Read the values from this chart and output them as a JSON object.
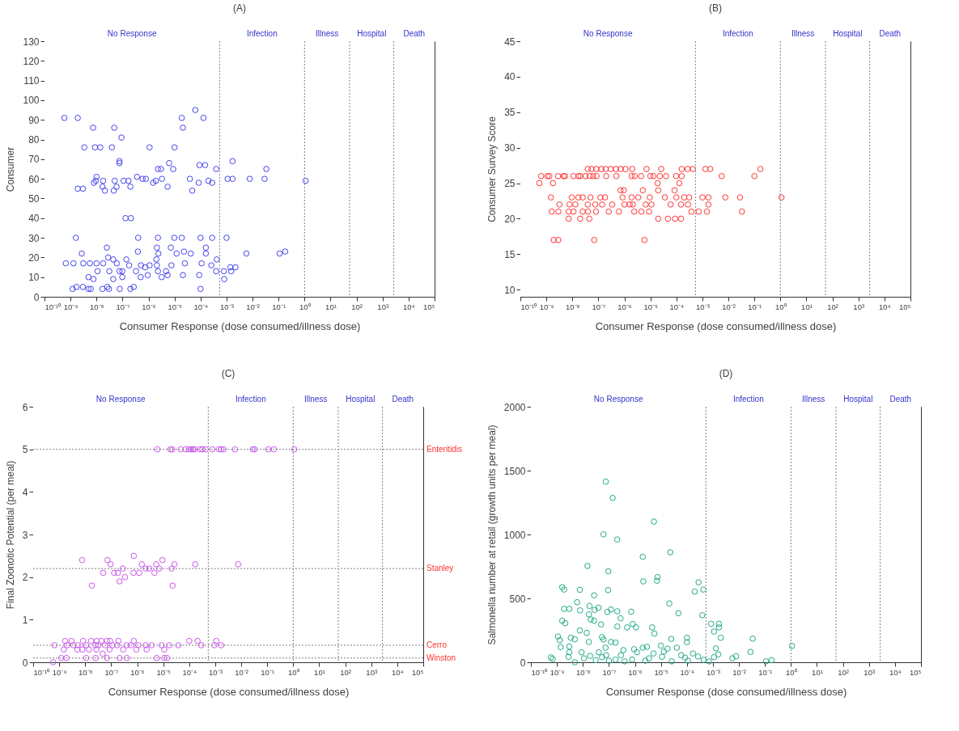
{
  "chart_data": [
    {
      "type": "scatter",
      "title": "(A)",
      "xlabel": "Consumer Response (dose consumed/illness dose)",
      "ylabel": "Consumer",
      "color": "#4444ee",
      "marker": "circle",
      "log": "x",
      "xlim": [
        1e-10,
        100000.0
      ],
      "xticks": [
        {
          "value": 1e-10,
          "label": "10⁻¹⁰"
        },
        {
          "value": 1e-09,
          "label": "10⁻⁹"
        },
        {
          "value": 1e-08,
          "label": "10⁻⁸"
        },
        {
          "value": 1e-07,
          "label": "10⁻⁷"
        },
        {
          "value": 1e-06,
          "label": "10⁻⁶"
        },
        {
          "value": 1e-05,
          "label": "10⁻⁵"
        },
        {
          "value": 0.0001,
          "label": "10⁻⁴"
        },
        {
          "value": 0.001,
          "label": "10⁻³"
        },
        {
          "value": 0.01,
          "label": "10⁻²"
        },
        {
          "value": 0.1,
          "label": "10⁻¹"
        },
        {
          "value": 1,
          "label": "10⁰"
        },
        {
          "value": 10,
          "label": "10¹"
        },
        {
          "value": 100,
          "label": "10²"
        },
        {
          "value": 1000,
          "label": "10³"
        },
        {
          "value": 10000,
          "label": "10⁴"
        },
        {
          "value": 100000,
          "label": "10⁵"
        }
      ],
      "ylim": [
        0,
        130
      ],
      "yticks": [
        0,
        10,
        20,
        30,
        40,
        50,
        60,
        70,
        80,
        90,
        100,
        110,
        120,
        130
      ],
      "bands": [
        {
          "axis": "x",
          "from": 1e-10,
          "to": 0.00054,
          "label": "No Response",
          "color": "#ffffff"
        },
        {
          "axis": "x",
          "from": 0.00054,
          "to": 1,
          "label": "Infection",
          "color": "#ffffff"
        },
        {
          "axis": "x",
          "from": 1,
          "to": 54,
          "label": "Illness",
          "color": "#ffffff"
        },
        {
          "axis": "x",
          "from": 54,
          "to": 2700,
          "label": "Hospital",
          "color": "#ffffff"
        },
        {
          "axis": "x",
          "from": 2700,
          "to": 100000.0,
          "label": "Death",
          "color": "#ffffff"
        }
      ],
      "ref_lines": [
        {
          "axis": "x",
          "value": 0.00054,
          "label": null,
          "color": "#808080",
          "line_style": "dotted"
        },
        {
          "axis": "x",
          "value": 1,
          "label": null,
          "color": "#808080",
          "line_style": "dotted"
        },
        {
          "axis": "x",
          "value": 54,
          "label": null,
          "color": "#808080",
          "line_style": "dotted"
        },
        {
          "axis": "x",
          "value": 2700,
          "label": null,
          "color": "#808080",
          "line_style": "dotted"
        }
      ],
      "x": [
        5.8e-10,
        1.9e-09,
        7.4e-09,
        4.8e-08,
        9.1e-08,
        3.4e-09,
        8.7e-09,
        1.4e-08,
        3.9e-08,
        1.1e-06,
        1e-05,
        7.6e-08,
        7.6e-08,
        1.9e-05,
        2.1e-05,
        6.3e-05,
        0.00013,
        6.2e-06,
        8.9e-06,
        2.3e-06,
        3e-06,
        9.1e-05,
        0.00015,
        0.0004,
        0.0017,
        0.034,
        1.9e-09,
        3e-09,
        7.9e-09,
        1e-08,
        9.3e-09,
        1.8e-08,
        1.7e-08,
        2.1e-08,
        4.6e-08,
        5e-08,
        5.9e-08,
        1.1e-07,
        1.7e-07,
        2e-07,
        3.6e-07,
        5.9e-07,
        7.9e-07,
        1.5e-06,
        1.9e-06,
        3.3e-06,
        5.4e-06,
        3.9e-05,
        4.8e-05,
        8.5e-05,
        0.0002,
        0.00028,
        0.0011,
        0.0017,
        0.0078,
        0.029,
        1.1,
        1.3e-07,
        2.1e-07,
        1.6e-09,
        4e-07,
        2.3e-06,
        9.8e-06,
        1.9e-05,
        0.0001,
        0.00028,
        0.001,
        2.5e-08,
        2.1e-06,
        7.2e-06,
        0.00016,
        2.7e-09,
        3.9e-07,
        2.4e-06,
        1.2e-05,
        2.3e-05,
        4.2e-05,
        0.00016,
        0.0058,
        0.11,
        0.18,
        6.6e-10,
        1.3e-09,
        3.1e-09,
        5.6e-09,
        1e-08,
        1.8e-08,
        2.8e-08,
        4.4e-08,
        6e-08,
        1.4e-07,
        1.8e-07,
        5.1e-07,
        1.1e-06,
        2e-06,
        2.1e-06,
        7.6e-06,
        2.5e-05,
        0.00011,
        0.00026,
        0.00042,
        0.0014,
        0.0022,
        1.1e-08,
        3.1e-08,
        7.6e-08,
        9.8e-08,
        3.3e-07,
        7.4e-07,
        2.3e-06,
        4.7e-06,
        0.0004,
        0.00079,
        0.0015,
        4.9e-09,
        7.6e-09,
        4.4e-08,
        9.8e-08,
        5e-07,
        9.3e-07,
        3.2e-06,
        5.4e-06,
        2.1e-05,
        8.9e-05,
        0.00081,
        1.2e-09,
        1.7e-09,
        3e-09,
        4.9e-09,
        6e-09,
        1.7e-08,
        2.6e-08,
        3e-08,
        7.8e-08,
        2e-07,
        2.7e-07,
        0.0001
      ],
      "values": [
        91,
        91,
        86,
        86,
        81,
        76,
        76,
        76,
        76,
        76,
        76,
        69,
        68,
        91,
        86,
        95,
        91,
        68,
        65,
        65,
        65,
        67,
        67,
        65,
        69,
        65,
        55,
        55,
        58,
        61,
        59,
        59,
        56,
        54,
        54,
        59,
        56,
        59,
        59,
        56,
        61,
        60,
        60,
        58,
        59,
        60,
        56,
        60,
        54,
        58,
        59,
        58,
        60,
        60,
        60,
        60,
        59,
        40,
        40,
        30,
        30,
        30,
        30,
        30,
        30,
        30,
        30,
        25,
        25,
        25,
        25,
        22,
        23,
        22,
        22,
        23,
        22,
        22,
        22,
        22,
        23,
        17,
        17,
        17,
        17,
        17,
        17,
        20,
        19,
        17,
        19,
        16,
        16,
        16,
        19,
        16,
        16,
        17,
        17,
        16,
        19,
        15,
        15,
        13,
        13,
        13,
        13,
        13,
        15,
        13,
        13,
        13,
        13,
        13,
        10,
        9,
        9,
        10,
        10,
        11,
        10,
        11,
        11,
        11,
        9,
        4,
        5,
        5,
        4,
        4,
        4,
        5,
        4,
        4,
        4,
        5,
        4
      ]
    },
    {
      "type": "scatter",
      "title": "(B)",
      "xlabel": "Consumer Response (dose consumed/illness dose)",
      "ylabel": "Consumer Survey Score",
      "color": "#ff3333",
      "marker": "circle",
      "log": "x",
      "xlim": [
        1e-10,
        100000.0
      ],
      "xticks": [
        {
          "value": 1e-10,
          "label": "10⁻¹⁰"
        },
        {
          "value": 1e-09,
          "label": "10⁻⁹"
        },
        {
          "value": 1e-08,
          "label": "10⁻⁸"
        },
        {
          "value": 1e-07,
          "label": "10⁻⁷"
        },
        {
          "value": 1e-06,
          "label": "10⁻⁶"
        },
        {
          "value": 1e-05,
          "label": "10⁻⁵"
        },
        {
          "value": 0.0001,
          "label": "10⁻⁴"
        },
        {
          "value": 0.001,
          "label": "10⁻³"
        },
        {
          "value": 0.01,
          "label": "10⁻²"
        },
        {
          "value": 0.1,
          "label": "10⁻¹"
        },
        {
          "value": 1,
          "label": "10⁰"
        },
        {
          "value": 10,
          "label": "10¹"
        },
        {
          "value": 100,
          "label": "10²"
        },
        {
          "value": 1000,
          "label": "10³"
        },
        {
          "value": 10000,
          "label": "10⁴"
        },
        {
          "value": 100000,
          "label": "10⁵"
        }
      ],
      "ylim": [
        9,
        45
      ],
      "yticks": [
        10,
        15,
        20,
        25,
        30,
        35,
        40,
        45
      ],
      "bands": [
        {
          "axis": "x",
          "from": 1e-10,
          "to": 0.00054,
          "label": "No Response",
          "color": "#ffffff"
        },
        {
          "axis": "x",
          "from": 0.00054,
          "to": 1,
          "label": "Infection",
          "color": "#ffffff"
        },
        {
          "axis": "x",
          "from": 1,
          "to": 54,
          "label": "Illness",
          "color": "#ffffff"
        },
        {
          "axis": "x",
          "from": 54,
          "to": 2700,
          "label": "Hospital",
          "color": "#ffffff"
        },
        {
          "axis": "x",
          "from": 2700,
          "to": 100000.0,
          "label": "Death",
          "color": "#ffffff"
        }
      ],
      "ref_lines": [
        {
          "axis": "x",
          "value": 0.00054,
          "label": null,
          "color": "#808080",
          "line_style": "dotted"
        },
        {
          "axis": "x",
          "value": 1,
          "label": null,
          "color": "#808080",
          "line_style": "dotted"
        },
        {
          "axis": "x",
          "value": 54,
          "label": null,
          "color": "#808080",
          "line_style": "dotted"
        },
        {
          "axis": "x",
          "value": 2700,
          "label": null,
          "color": "#808080",
          "line_style": "dotted"
        }
      ],
      "x": [
        3.9e-08,
        5.4e-08,
        8.3e-08,
        1.3e-07,
        1.9e-07,
        3e-07,
        4.7e-07,
        7.2e-07,
        1.1e-06,
        2e-06,
        7.1e-06,
        2.6e-05,
        0.00016,
        0.00027,
        0.00043,
        0.0013,
        0.002,
        0.17,
        6.3e-10,
        1.1e-09,
        1.3e-09,
        2.8e-09,
        4.6e-09,
        5.2e-09,
        1.1e-08,
        1.7e-08,
        2e-08,
        3.2e-08,
        4.7e-08,
        6.3e-08,
        8.5e-08,
        2e-07,
        4.9e-07,
        1.9e-06,
        2.5e-06,
        4.4e-06,
        1e-05,
        1.3e-05,
        2.3e-05,
        4e-05,
        9.8e-05,
        0.00016,
        0.0055,
        0.1,
        5.4e-10,
        1.8e-09,
        1.9e-05,
        0.00013,
        7.1e-07,
        9.5e-07,
        5.1e-06,
        2e-05,
        8.5e-05,
        1.5e-09,
        9.5e-09,
        1.7e-08,
        2.5e-08,
        5e-08,
        1.2e-07,
        1.8e-07,
        8.5e-07,
        1.9e-06,
        3.4e-06,
        9.5e-06,
        3.6e-05,
        0.0001,
        0.0002,
        0.00031,
        0.001,
        0.0017,
        0.0076,
        0.028,
        1.1,
        3.2e-09,
        7.8e-09,
        1.3e-08,
        3.9e-08,
        7.6e-08,
        1.4e-07,
        3.4e-07,
        1e-06,
        1.6e-06,
        2.1e-06,
        6.6e-06,
        1.1e-05,
        6e-05,
        0.00015,
        0.00028,
        0.0017,
        1.6e-09,
        2.9e-09,
        7.2e-09,
        1.1e-08,
        2.5e-08,
        4e-08,
        8.1e-08,
        2.5e-07,
        6.2e-07,
        2.4e-06,
        4.5e-06,
        8.9e-06,
        0.00038,
        0.00072,
        0.0015,
        0.033,
        7.2e-09,
        2e-08,
        4.5e-08,
        2e-05,
        4.7e-05,
        8.9e-05,
        0.00015,
        1.9e-09,
        2.9e-09,
        6.9e-08,
        5.9e-06
      ],
      "values": [
        27,
        27,
        27,
        27,
        27,
        27,
        27,
        27,
        27,
        27,
        27,
        27,
        27,
        27,
        27,
        27,
        27,
        27,
        26,
        26,
        26,
        26,
        26,
        26,
        26,
        26,
        26,
        26,
        26,
        26,
        26,
        26,
        26,
        26,
        26,
        26,
        26,
        26,
        26,
        26,
        26,
        26,
        26,
        26,
        25,
        25,
        25,
        25,
        24,
        24,
        24,
        24,
        24,
        23,
        23,
        23,
        23,
        23,
        23,
        23,
        23,
        23,
        23,
        23,
        23,
        23,
        23,
        23,
        23,
        23,
        23,
        23,
        23,
        22,
        22,
        22,
        22,
        22,
        22,
        22,
        22,
        22,
        22,
        22,
        22,
        22,
        22,
        22,
        22,
        21,
        21,
        21,
        21,
        21,
        21,
        21,
        21,
        21,
        21,
        21,
        21,
        21,
        21,
        21,
        21,
        20,
        20,
        20,
        20,
        20,
        20,
        20,
        17,
        17,
        17,
        17
      ]
    },
    {
      "type": "scatter",
      "title": "(C)",
      "xlabel": "Consumer Response (dose consumed/illness dose)",
      "ylabel": "Final Zoonotic Potential (per meal)",
      "color": "#cc55ee",
      "marker": "circle",
      "log": "x",
      "xlim": [
        1e-10,
        100000.0
      ],
      "xticks": [
        {
          "value": 1e-10,
          "label": "10⁻¹⁰"
        },
        {
          "value": 1e-09,
          "label": "10⁻⁹"
        },
        {
          "value": 1e-08,
          "label": "10⁻⁸"
        },
        {
          "value": 1e-07,
          "label": "10⁻⁷"
        },
        {
          "value": 1e-06,
          "label": "10⁻⁶"
        },
        {
          "value": 1e-05,
          "label": "10⁻⁵"
        },
        {
          "value": 0.0001,
          "label": "10⁻⁴"
        },
        {
          "value": 0.001,
          "label": "10⁻³"
        },
        {
          "value": 0.01,
          "label": "10⁻²"
        },
        {
          "value": 0.1,
          "label": "10⁻¹"
        },
        {
          "value": 1,
          "label": "10⁰"
        },
        {
          "value": 10,
          "label": "10¹"
        },
        {
          "value": 100,
          "label": "10²"
        },
        {
          "value": 1000,
          "label": "10³"
        },
        {
          "value": 10000,
          "label": "10⁴"
        },
        {
          "value": 100000,
          "label": "10⁵"
        }
      ],
      "ylim": [
        0,
        6
      ],
      "yticks": [
        0,
        1,
        2,
        3,
        4,
        5,
        6
      ],
      "bands": [
        {
          "axis": "x",
          "from": 1e-10,
          "to": 0.00054,
          "label": "No Response",
          "color": "#ffffff"
        },
        {
          "axis": "x",
          "from": 0.00054,
          "to": 1,
          "label": "Infection",
          "color": "#ffffff"
        },
        {
          "axis": "x",
          "from": 1,
          "to": 54,
          "label": "Illness",
          "color": "#ffffff"
        },
        {
          "axis": "x",
          "from": 54,
          "to": 2700,
          "label": "Hospital",
          "color": "#ffffff"
        },
        {
          "axis": "x",
          "from": 2700,
          "to": 100000.0,
          "label": "Death",
          "color": "#ffffff"
        }
      ],
      "ref_lines": [
        {
          "axis": "x",
          "value": 0.00054,
          "label": null,
          "color": "#808080",
          "line_style": "dotted"
        },
        {
          "axis": "x",
          "value": 1,
          "label": null,
          "color": "#808080",
          "line_style": "dotted"
        },
        {
          "axis": "x",
          "value": 54,
          "label": null,
          "color": "#808080",
          "line_style": "dotted"
        },
        {
          "axis": "x",
          "value": 2700,
          "label": null,
          "color": "#808080",
          "line_style": "dotted"
        },
        {
          "axis": "y",
          "value": 5,
          "label": "Enteritidis",
          "color": "#808080",
          "line_style": "dotted"
        },
        {
          "axis": "y",
          "value": 2.2,
          "label": "Stanley",
          "color": "#808080",
          "line_style": "dotted"
        },
        {
          "axis": "y",
          "value": 0.4,
          "label": "Cerro",
          "color": "#808080",
          "line_style": "dotted"
        },
        {
          "axis": "y",
          "value": 0.1,
          "label": "Winston",
          "color": "#808080",
          "line_style": "dotted"
        }
      ],
      "x": [
        6e-06,
        1.9e-05,
        2.2e-05,
        4.7e-05,
        7.2e-05,
        9.8e-05,
        0.00012,
        0.00014,
        0.00016,
        0.00026,
        0.00032,
        0.00043,
        0.00078,
        0.0014,
        0.0017,
        0.0021,
        0.0058,
        0.028,
        0.033,
        0.11,
        0.18,
        1.1,
        7.6e-09,
        1.8e-08,
        4.9e-08,
        7.2e-08,
        9.5e-08,
        1.3e-07,
        1.8e-07,
        2.1e-07,
        2.8e-07,
        3.4e-07,
        7.4e-07,
        7.2e-07,
        1.2e-06,
        1.5e-06,
        2.1e-06,
        2.9e-06,
        4.6e-06,
        5.4e-06,
        7.1e-06,
        9.3e-06,
        2.1e-05,
        2.3e-05,
        2.7e-05,
        0.00017,
        0.0076,
        1.7e-09,
        3e-09,
        8.3e-09,
        1.7e-08,
        2.8e-08,
        4.2e-08,
        6.9e-08,
        9.1e-08,
        1.9e-07,
        7.4e-07,
        0.0001,
        0.00021,
        0.0011,
        6.6e-10,
        2e-09,
        3.5e-09,
        5.2e-09,
        1.1e-08,
        2.5e-08,
        3.2e-08,
        5.8e-08,
        1.1e-07,
        1.7e-07,
        3.9e-07,
        5.8e-07,
        1.1e-06,
        2.1e-06,
        3.6e-06,
        8.7e-06,
        1.7e-05,
        3.8e-05,
        0.00029,
        0.00093,
        0.0017,
        1.5e-09,
        5e-09,
        7.8e-09,
        1.4e-08,
        2.7e-08,
        8.7e-08,
        2.9e-07,
        9.3e-07,
        2.3e-06,
        1.1e-05,
        4.7e-08,
        1.2e-09,
        1.9e-09,
        1.1e-08,
        2.5e-08,
        6.9e-08,
        2.1e-07,
        4e-07,
        5.6e-06,
        1.1e-05,
        1.4e-05,
        5.8e-10
      ],
      "values": [
        5,
        5,
        5,
        5,
        5,
        5,
        5,
        5,
        5,
        5,
        5,
        5,
        5,
        5,
        5,
        5,
        5,
        5,
        5,
        5,
        5,
        5,
        2.4,
        1.8,
        2.1,
        2.4,
        2.3,
        2.1,
        2.1,
        1.9,
        2.2,
        2.0,
        2.5,
        2.1,
        2.1,
        2.3,
        2.2,
        2.2,
        2.1,
        2.3,
        2.2,
        2.4,
        2.2,
        1.8,
        2.3,
        2.3,
        2.3,
        0.5,
        0.5,
        0.5,
        0.5,
        0.5,
        0.5,
        0.5,
        0.5,
        0.5,
        0.5,
        0.5,
        0.5,
        0.5,
        0.4,
        0.4,
        0.4,
        0.4,
        0.4,
        0.4,
        0.4,
        0.4,
        0.4,
        0.4,
        0.4,
        0.4,
        0.4,
        0.4,
        0.4,
        0.4,
        0.4,
        0.4,
        0.4,
        0.4,
        0.4,
        0.3,
        0.3,
        0.3,
        0.3,
        0.3,
        0.3,
        0.3,
        0.3,
        0.3,
        0.3,
        0.2,
        0.1,
        0.1,
        0.1,
        0.1,
        0.1,
        0.1,
        0.1,
        0.1,
        0.1,
        0.1,
        0
      ]
    },
    {
      "type": "scatter",
      "title": "(D)",
      "xlabel": "Consumer Response (dose consumed/illness dose)",
      "ylabel": "Salmonella number at retail (growth units per meal)",
      "color": "#22aa88",
      "marker": "circle",
      "log": "x",
      "xlim": [
        1e-10,
        100000.0
      ],
      "xticks": [
        {
          "value": 1e-10,
          "label": "10⁻¹⁰"
        },
        {
          "value": 1e-09,
          "label": "10⁻⁹"
        },
        {
          "value": 1e-08,
          "label": "10⁻⁸"
        },
        {
          "value": 1e-07,
          "label": "10⁻⁷"
        },
        {
          "value": 1e-06,
          "label": "10⁻⁶"
        },
        {
          "value": 1e-05,
          "label": "10⁻⁵"
        },
        {
          "value": 0.0001,
          "label": "10⁻⁴"
        },
        {
          "value": 0.001,
          "label": "10⁻³"
        },
        {
          "value": 0.01,
          "label": "10⁻²"
        },
        {
          "value": 0.1,
          "label": "10⁻¹"
        },
        {
          "value": 1,
          "label": "10⁰"
        },
        {
          "value": 10,
          "label": "10¹"
        },
        {
          "value": 100,
          "label": "10²"
        },
        {
          "value": 1000,
          "label": "10³"
        },
        {
          "value": 10000,
          "label": "10⁴"
        },
        {
          "value": 100000,
          "label": "10⁵"
        }
      ],
      "ylim": [
        0,
        2000
      ],
      "yticks": [
        0,
        500,
        1000,
        1500,
        2000
      ],
      "bands": [
        {
          "axis": "x",
          "from": 1e-10,
          "to": 0.00054,
          "label": "No Response",
          "color": "#ffffff"
        },
        {
          "axis": "x",
          "from": 0.00054,
          "to": 1,
          "label": "Infection",
          "color": "#ffffff"
        },
        {
          "axis": "x",
          "from": 1,
          "to": 54,
          "label": "Illness",
          "color": "#ffffff"
        },
        {
          "axis": "x",
          "from": 54,
          "to": 2700,
          "label": "Hospital",
          "color": "#ffffff"
        },
        {
          "axis": "x",
          "from": 2700,
          "to": 100000.0,
          "label": "Death",
          "color": "#ffffff"
        }
      ],
      "ref_lines": [
        {
          "axis": "x",
          "value": 0.00054,
          "label": null,
          "color": "#808080",
          "line_style": "dotted"
        },
        {
          "axis": "x",
          "value": 1,
          "label": null,
          "color": "#808080",
          "line_style": "dotted"
        },
        {
          "axis": "x",
          "value": 54,
          "label": null,
          "color": "#808080",
          "line_style": "dotted"
        },
        {
          "axis": "x",
          "value": 2700,
          "label": null,
          "color": "#808080",
          "line_style": "dotted"
        }
      ],
      "x": [
        7.6e-08,
        1.4e-07,
        5.4e-06,
        6.2e-08,
        2.1e-07,
        2.3e-05,
        2e-06,
        1.5e-08,
        9.5e-08,
        2.1e-06,
        7.4e-06,
        7.1e-06,
        0.00028,
        0.0002,
        0.00043,
        1.6e-09,
        1.9e-09,
        7.6e-09,
        9.3e-08,
        2.7e-08,
        6e-09,
        2.1e-05,
        1.9e-09,
        3e-09,
        1.8e-08,
        4e-08,
        7.8e-09,
        1.7e-08,
        2.8e-08,
        1.2e-07,
        2.1e-07,
        8.7e-08,
        7.2e-07,
        4.7e-05,
        0.00039,
        2.8e-07,
        1.6e-09,
        2.1e-09,
        2e-08,
        2.7e-08,
        5e-08,
        2.1e-07,
        8.3e-07,
        1.1e-06,
        5e-07,
        4.6e-06,
        0.00085,
        0.0017,
        0.0017,
        7.6e-09,
        1.4e-08,
        1.1e-09,
        1.3e-09,
        3.4e-09,
        4.9e-09,
        1.7e-08,
        5.4e-08,
        6.2e-08,
        1.2e-07,
        1.8e-07,
        5.6e-06,
        2.5e-05,
        0.0001,
        0.0001,
        0.0011,
        0.002,
        0.034,
        0.028,
        1.1,
        0.0013,
        0.0016,
        0.0011,
        0.0056,
        0.0078,
        0.11,
        0.18,
        5.9e-10,
        6.9e-10,
        1.4e-09,
        3e-09,
        3e-09,
        2.8e-09,
        4.9e-09,
        8.9e-09,
        1.1e-08,
        1.9e-08,
        3.1e-08,
        4.1e-08,
        5.4e-08,
        7.4e-08,
        7.8e-08,
        1e-07,
        1.8e-07,
        2.9e-07,
        3.6e-07,
        4e-07,
        7.8e-07,
        9.3e-07,
        1.2e-06,
        2e-06,
        2.5e-06,
        2.9e-06,
        3.5e-06,
        5.2e-06,
        1e-05,
        1.1e-05,
        1.3e-05,
        1.8e-05,
        2.6e-05,
        4.1e-05,
        6e-05,
        8.5e-05,
        0.00011,
        0.00017,
        0.00027,
        0.00044,
        0.00071
      ],
      "values": [
        1414,
        1286,
        1101,
        1001,
        961,
        861,
        826,
        754,
        712,
        633,
        667,
        638,
        626,
        553,
        569,
        588,
        569,
        567,
        565,
        524,
        470,
        460,
        418,
        418,
        441,
        427,
        406,
        375,
        410,
        413,
        399,
        394,
        396,
        384,
        368,
        344,
        325,
        306,
        335,
        325,
        297,
        280,
        299,
        273,
        273,
        273,
        301,
        301,
        273,
        249,
        230,
        202,
        173,
        192,
        180,
        159,
        197,
        178,
        159,
        154,
        225,
        183,
        192,
        157,
        240,
        192,
        185,
        81,
        128,
        109,
        62,
        40,
        31,
        47,
        7,
        17,
        38,
        26,
        119,
        123,
        78,
        43,
        0,
        78,
        31,
        50,
        17,
        78,
        40,
        114,
        55,
        12,
        21,
        55,
        95,
        7,
        21,
        102,
        78,
        114,
        12,
        121,
        31,
        69,
        130,
        43,
        83,
        107,
        7,
        114,
        55,
        36,
        12,
        69,
        45,
        19,
        7
      ]
    }
  ]
}
